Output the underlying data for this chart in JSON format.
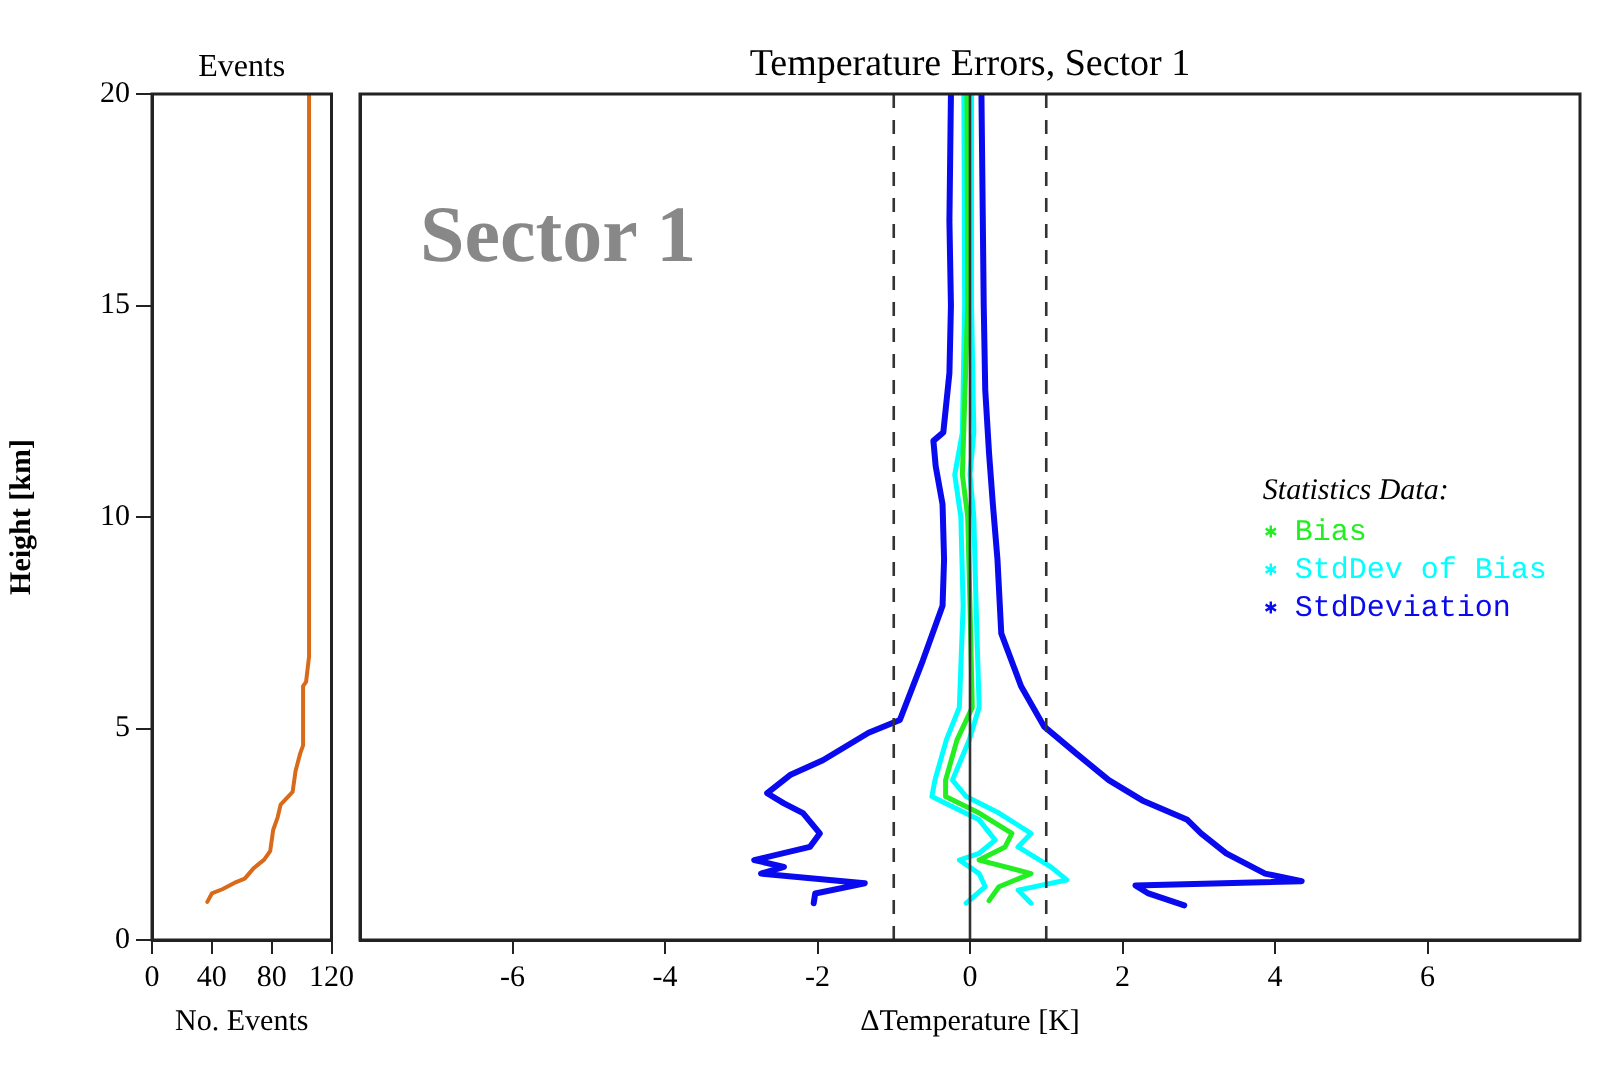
{
  "chart_data": [
    {
      "type": "line",
      "title": "Events",
      "xlabel": "No. Events",
      "ylabel": "Height [km]",
      "xlim": [
        0,
        120
      ],
      "xticks": [
        0,
        40,
        80,
        120
      ],
      "ylim": [
        0,
        20
      ],
      "yticks": [
        0,
        5,
        10,
        15,
        20
      ],
      "series": [
        {
          "color": "#d86a1a",
          "x": [
            37,
            40,
            47,
            55,
            62,
            68,
            75,
            79,
            81,
            84,
            86,
            94,
            96,
            99,
            101,
            101,
            103,
            105,
            105
          ],
          "values": [
            0.9,
            1.1,
            1.2,
            1.35,
            1.45,
            1.7,
            1.9,
            2.1,
            2.6,
            2.9,
            3.2,
            3.5,
            4.0,
            4.4,
            4.6,
            6.0,
            6.1,
            6.7,
            20
          ]
        }
      ]
    },
    {
      "type": "line",
      "title": "Temperature Errors, Sector 1",
      "xlabel": "ΔTemperature [K]",
      "legend_title": "Statistics Data:",
      "legend": "right",
      "annotations": [
        "Sector 1"
      ],
      "tick_labels": "x",
      "xlim": [
        -8,
        8
      ],
      "xticks": [
        -6,
        -4,
        -2,
        0,
        2,
        4,
        6
      ],
      "ylim": [
        0,
        20
      ],
      "yticks": [
        0,
        5,
        10,
        15,
        20
      ],
      "ref_lines": [
        {
          "axis": "x",
          "value": -1,
          "color": "#333333",
          "line_style": "dashed"
        },
        {
          "axis": "x",
          "value": 1,
          "color": "#333333",
          "line_style": "dashed"
        },
        {
          "axis": "x",
          "value": 0,
          "color": "#333333",
          "line_style": "solid"
        }
      ],
      "series": [
        {
          "name": "Bias",
          "color": "#22ee22",
          "x": [
            -0.04,
            -0.03,
            -0.1,
            -0.03,
            0.0,
            0.03,
            -0.17,
            -0.32,
            -0.32,
            0.12,
            0.55,
            0.46,
            0.12,
            0.8,
            0.38,
            0.25
          ],
          "values": [
            20,
            15,
            11,
            10,
            7.9,
            5.5,
            4.73,
            3.78,
            3.39,
            3.0,
            2.52,
            2.2,
            1.89,
            1.57,
            1.26,
            0.93
          ]
        },
        {
          "name": "StdDev of Bias",
          "color": "#00ffff",
          "x": [
            -0.08,
            -0.07,
            -0.1,
            -0.2,
            -0.12,
            -0.09,
            -0.14,
            -0.31,
            -0.46,
            -0.5,
            -0.23,
            0.12,
            0.33,
            0.12,
            -0.14,
            0.12,
            0.2,
            -0.05
          ],
          "values": [
            20,
            15,
            12,
            11,
            10,
            7.9,
            5.5,
            4.73,
            3.78,
            3.39,
            3.15,
            2.84,
            2.36,
            2.05,
            1.89,
            1.57,
            1.26,
            0.87
          ]
        },
        {
          "color": "#00ffff",
          "x": [
            0.0,
            0.02,
            0.05,
            0.0,
            0.05,
            0.08,
            0.12,
            -0.01,
            -0.23,
            -0.05,
            0.38,
            0.8,
            0.63,
            1.06,
            1.27,
            0.63,
            0.8
          ],
          "values": [
            20,
            15,
            12,
            11,
            10,
            7.9,
            5.5,
            4.73,
            3.78,
            3.39,
            3.0,
            2.52,
            2.2,
            1.73,
            1.42,
            1.18,
            0.87
          ]
        },
        {
          "name": "StdDeviation",
          "color": "#0a0aee",
          "x": [
            -0.25,
            -0.27,
            -0.25,
            -0.27,
            -0.35,
            -0.48,
            -0.45,
            -0.36,
            -0.34,
            -0.36,
            -0.62,
            -0.92,
            -1.33,
            -1.93,
            -2.36,
            -2.66,
            -2.44,
            -2.19,
            -1.97,
            -2.1,
            -2.83,
            -2.44,
            -2.74,
            -1.38,
            -2.03,
            -2.05
          ],
          "values": [
            20,
            17,
            15,
            13.4,
            12,
            11.8,
            11.2,
            10.3,
            9.0,
            7.9,
            6.6,
            5.2,
            4.9,
            4.25,
            3.9,
            3.47,
            3.23,
            3.0,
            2.52,
            2.2,
            1.89,
            1.73,
            1.57,
            1.34,
            1.1,
            0.87
          ]
        },
        {
          "color": "#0a0aee",
          "x": [
            0.15,
            0.18,
            0.2,
            0.25,
            0.3,
            0.36,
            0.41,
            0.67,
            0.97,
            1.4,
            1.82,
            2.26,
            2.85,
            3.03,
            3.36,
            3.87,
            4.35,
            2.17,
            2.34,
            2.81
          ],
          "values": [
            20,
            15,
            13,
            11.5,
            10.3,
            9.0,
            7.25,
            6.0,
            5.05,
            4.4,
            3.78,
            3.3,
            2.84,
            2.52,
            2.05,
            1.57,
            1.39,
            1.29,
            1.1,
            0.82
          ]
        }
      ]
    }
  ]
}
